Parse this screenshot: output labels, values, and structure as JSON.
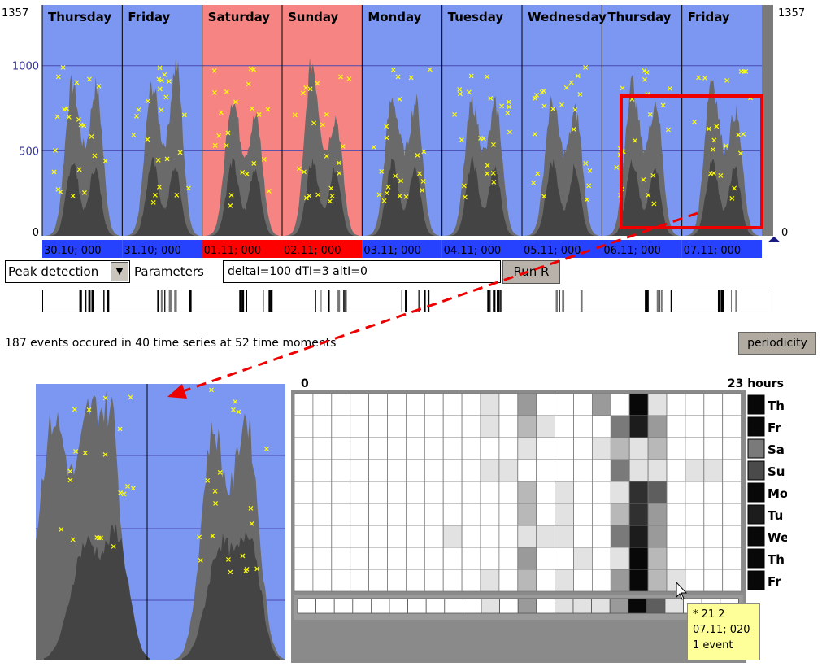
{
  "top_chart": {
    "y_max_label": "1357",
    "y_ticks": [
      "1000",
      "500"
    ],
    "y_min_label": "0",
    "right_max_label": "1357",
    "right_min_label": "0",
    "days": [
      "Thursday",
      "Friday",
      "Saturday",
      "Sunday",
      "Monday",
      "Tuesday",
      "Wednesday",
      "Thursday",
      "Friday"
    ],
    "weekend_days": [
      "Saturday",
      "Sunday"
    ],
    "date_labels": [
      "30.10; 000",
      "31.10; 000",
      "01.11; 000",
      "02.11; 000",
      "03.11; 000",
      "04.11; 000",
      "05.11; 000",
      "06.11; 000",
      "07.11; 000"
    ],
    "colors": {
      "weekday_bg": "#7b97f2",
      "weekend_bg": "#f58482",
      "series": "#555555",
      "peak_marker": "#ffff00",
      "highlight_box": "#ee0000",
      "date_bar": "#2642ff",
      "date_bar_weekend": "#ff0000"
    }
  },
  "controls": {
    "method_select": "Peak detection",
    "parameters_label": "Parameters",
    "parameters_value": "deltaI=100 dTI=3 altI=0",
    "run_button": "Run R",
    "periodicity_button": "periodicity"
  },
  "summary_text": "187 events occured in 40 time series at 52 time moments",
  "matrix": {
    "start_label": "0",
    "end_label": "23 hours",
    "rows": [
      {
        "day": "Th",
        "cells": [
          0,
          0,
          0,
          0,
          0,
          0,
          0,
          0,
          0,
          0,
          1,
          0,
          3,
          0,
          0,
          0,
          3,
          0,
          9,
          1,
          0,
          0,
          0,
          0
        ]
      },
      {
        "day": "Fr",
        "cells": [
          0,
          0,
          0,
          0,
          0,
          0,
          0,
          0,
          0,
          0,
          1,
          0,
          2,
          1,
          0,
          0,
          0,
          4,
          8,
          3,
          0,
          0,
          0,
          0
        ]
      },
      {
        "day": "Sa",
        "cells": [
          0,
          0,
          0,
          0,
          0,
          0,
          0,
          0,
          0,
          0,
          0,
          0,
          1,
          0,
          0,
          0,
          1,
          2,
          1,
          2,
          0,
          0,
          0,
          0
        ]
      },
      {
        "day": "Su",
        "cells": [
          0,
          0,
          0,
          0,
          0,
          0,
          0,
          0,
          0,
          0,
          1,
          1,
          0,
          0,
          0,
          0,
          0,
          4,
          1,
          1,
          0,
          1,
          1,
          0
        ]
      },
      {
        "day": "Mo",
        "cells": [
          0,
          0,
          0,
          0,
          0,
          0,
          0,
          0,
          0,
          0,
          0,
          0,
          2,
          0,
          1,
          0,
          0,
          1,
          7,
          5,
          0,
          0,
          0,
          0
        ]
      },
      {
        "day": "Tu",
        "cells": [
          0,
          0,
          0,
          0,
          0,
          0,
          0,
          0,
          0,
          0,
          0,
          0,
          2,
          0,
          1,
          0,
          0,
          2,
          7,
          3,
          0,
          0,
          0,
          0
        ]
      },
      {
        "day": "We",
        "cells": [
          0,
          0,
          0,
          0,
          0,
          0,
          0,
          0,
          1,
          0,
          0,
          0,
          1,
          1,
          1,
          0,
          0,
          4,
          8,
          3,
          0,
          0,
          0,
          0
        ]
      },
      {
        "day": "Th",
        "cells": [
          0,
          0,
          0,
          0,
          0,
          0,
          0,
          0,
          0,
          0,
          0,
          0,
          3,
          0,
          0,
          1,
          0,
          1,
          9,
          2,
          0,
          0,
          0,
          0
        ]
      },
      {
        "day": "Fr",
        "cells": [
          0,
          0,
          0,
          0,
          0,
          0,
          0,
          0,
          0,
          0,
          1,
          0,
          2,
          0,
          1,
          0,
          0,
          3,
          9,
          2,
          1,
          0,
          0,
          0
        ]
      }
    ],
    "totals": [
      0,
      0,
      0,
      0,
      0,
      0,
      0,
      0,
      0,
      0,
      1,
      0,
      3,
      0,
      1,
      1,
      1,
      3,
      9,
      5,
      1,
      0,
      0,
      0
    ],
    "row_totals": [
      9,
      9,
      4,
      6,
      9,
      8,
      9,
      9,
      9
    ]
  },
  "tooltip": {
    "line1": "* 21 2",
    "line2": "07.11; 020",
    "line3": "1 event"
  }
}
